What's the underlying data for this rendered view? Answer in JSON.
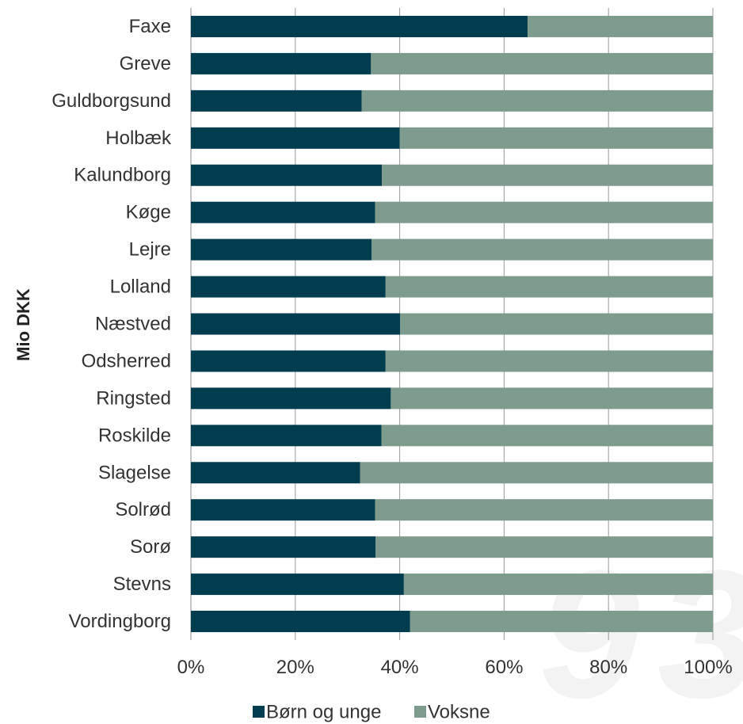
{
  "chart_data": {
    "type": "bar",
    "orientation": "horizontal",
    "stacked": "percent",
    "ylabel": "Mio DKK",
    "categories": [
      "Faxe",
      "Greve",
      "Guldborgsund",
      "Holbæk",
      "Kalundborg",
      "Køge",
      "Lejre",
      "Lolland",
      "Næstved",
      "Odsherred",
      "Ringsted",
      "Roskilde",
      "Slagelse",
      "Solrød",
      "Sorø",
      "Stevns",
      "Vordingborg"
    ],
    "series": [
      {
        "name": "Børn og unge",
        "color": "#003d4f",
        "values": [
          64.5,
          34.5,
          32.7,
          40.0,
          36.6,
          35.3,
          34.6,
          37.3,
          40.1,
          37.3,
          38.3,
          36.5,
          32.4,
          35.3,
          35.4,
          40.8,
          42.0
        ]
      },
      {
        "name": "Voksne",
        "color": "#7e9c8e",
        "values": [
          35.5,
          65.5,
          67.3,
          60.0,
          63.4,
          64.7,
          65.4,
          62.7,
          59.9,
          62.7,
          61.7,
          63.5,
          67.6,
          64.7,
          64.6,
          59.2,
          58.0
        ]
      }
    ],
    "xlim": [
      0,
      100
    ],
    "xticks": [
      "0%",
      "20%",
      "40%",
      "60%",
      "80%",
      "100%"
    ],
    "grid": "vertical",
    "legend_position": "bottom"
  }
}
